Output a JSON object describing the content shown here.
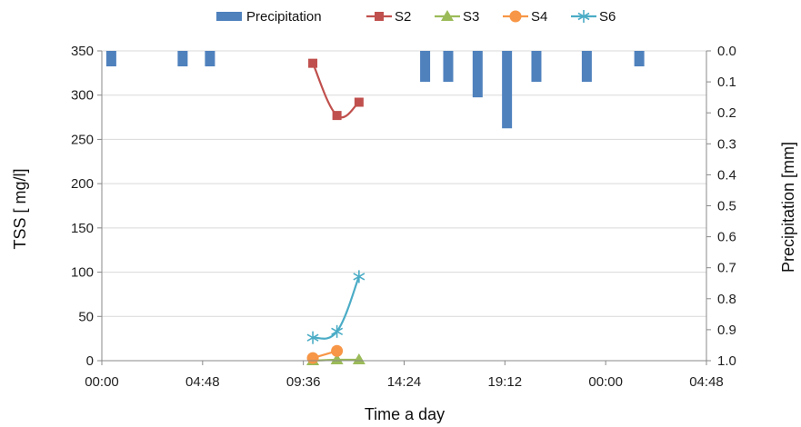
{
  "chart_data": {
    "type": "line",
    "xlabel": "Time a day",
    "ylabel": "TSS [ mg/l]",
    "y2label": "Precipitation [mm]",
    "x_ticks": [
      "00:00",
      "04:48",
      "09:36",
      "14:24",
      "19:12",
      "00:00",
      "04:48"
    ],
    "x_tick_hours": [
      0,
      4.8,
      9.6,
      14.4,
      19.2,
      24,
      28.8
    ],
    "xlim_hours": [
      0,
      28.8
    ],
    "ylim": [
      0,
      350
    ],
    "y_ticks": [
      0,
      50,
      100,
      150,
      200,
      250,
      300,
      350
    ],
    "y2lim": [
      0,
      1.0
    ],
    "y2_inverted": true,
    "y2_ticks": [
      "0.0",
      "0.1",
      "0.2",
      "0.3",
      "0.4",
      "0.5",
      "0.6",
      "0.7",
      "0.8",
      "0.9",
      "1.0"
    ],
    "grid": "horizontal",
    "legend_position": "top",
    "precipitation": {
      "name": "Precipitation",
      "axis": "right",
      "color": "#4f81bd",
      "x_hours": [
        0.45,
        3.85,
        5.15,
        15.4,
        16.5,
        17.9,
        19.3,
        20.7,
        23.1,
        25.6
      ],
      "values": [
        0.05,
        0.05,
        0.05,
        0.1,
        0.1,
        0.15,
        0.25,
        0.1,
        0.1,
        0.05
      ]
    },
    "series": [
      {
        "name": "S2",
        "color": "#c0504d",
        "marker": "square",
        "x_hours": [
          10.05,
          11.2,
          12.25
        ],
        "values": [
          336,
          277,
          292
        ]
      },
      {
        "name": "S3",
        "color": "#9bbb59",
        "marker": "triangle",
        "x_hours": [
          10.05,
          11.2,
          12.25
        ],
        "values": [
          0,
          1,
          1
        ]
      },
      {
        "name": "S4",
        "color": "#f79646",
        "marker": "circle",
        "x_hours": [
          10.05,
          11.2
        ],
        "values": [
          3,
          11
        ]
      },
      {
        "name": "S6",
        "color": "#4bacc6",
        "marker": "star",
        "x_hours": [
          10.05,
          11.2,
          12.25
        ],
        "values": [
          26,
          33,
          95
        ]
      }
    ]
  }
}
